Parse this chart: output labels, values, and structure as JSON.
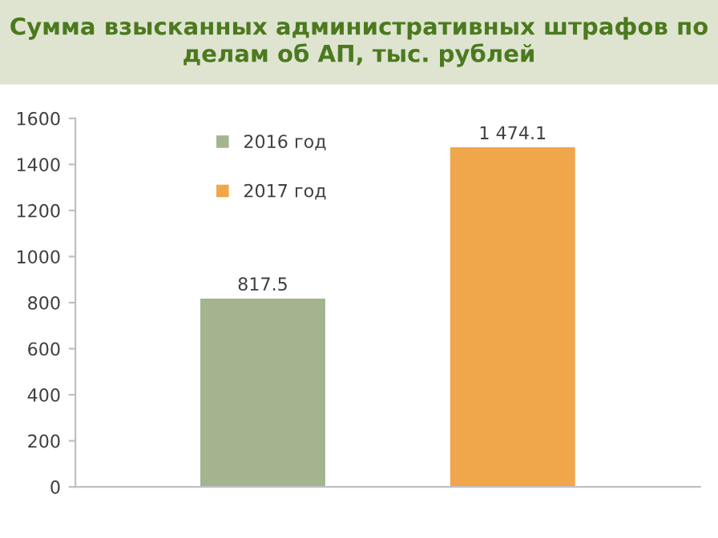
{
  "chart_data": {
    "type": "bar",
    "title": "Сумма взысканных административных штрафов по делам об АП, тыс. рублей",
    "categories": [
      null
    ],
    "series": [
      {
        "name": "2016 год",
        "color": "#a3b48e",
        "values": [
          817.5
        ],
        "value_labels": [
          "817.5"
        ]
      },
      {
        "name": "2017 год",
        "color": "#f0a64a",
        "values": [
          1474.1
        ],
        "value_labels": [
          "1 474.1"
        ]
      }
    ],
    "ylim": [
      0,
      1600
    ],
    "yticks": [
      0,
      200,
      400,
      600,
      800,
      1000,
      1200,
      1400,
      1600
    ],
    "grid": false,
    "legend": "top left"
  }
}
